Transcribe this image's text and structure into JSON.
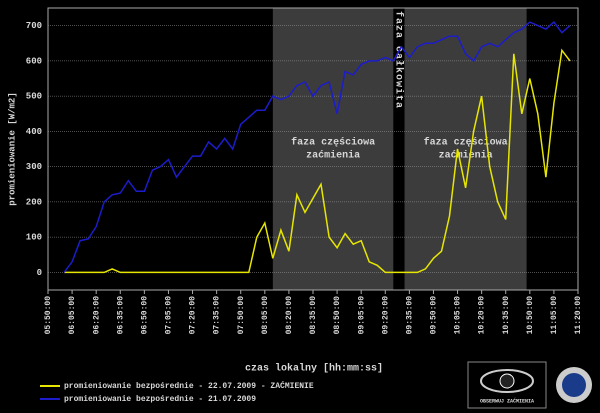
{
  "chart_data": {
    "type": "line",
    "y_label": "promieniowanie [W/m2]",
    "x_label": "czas lokalny [hh:mm:ss]",
    "x": [
      "06:00:00",
      "06:05:00",
      "06:10:00",
      "06:15:00",
      "06:20:00",
      "06:25:00",
      "06:30:00",
      "06:35:00",
      "06:40:00",
      "06:45:00",
      "06:50:00",
      "06:55:00",
      "07:00:00",
      "07:05:00",
      "07:10:00",
      "07:15:00",
      "07:20:00",
      "07:25:00",
      "07:30:00",
      "07:35:00",
      "07:40:00",
      "07:45:00",
      "07:50:00",
      "07:55:00",
      "08:00:00",
      "08:05:00",
      "08:10:00",
      "08:15:00",
      "08:20:00",
      "08:25:00",
      "08:30:00",
      "08:35:00",
      "08:40:00",
      "08:45:00",
      "08:50:00",
      "08:55:00",
      "09:00:00",
      "09:05:00",
      "09:10:00",
      "09:15:00",
      "09:20:00",
      "09:25:00",
      "09:30:00",
      "09:35:00",
      "09:40:00",
      "09:45:00",
      "09:50:00",
      "09:55:00",
      "10:00:00",
      "10:05:00",
      "10:10:00",
      "10:15:00",
      "10:20:00",
      "10:25:00",
      "10:30:00",
      "10:35:00",
      "10:40:00",
      "10:45:00",
      "10:50:00",
      "10:55:00",
      "11:00:00",
      "11:05:00",
      "11:10:00",
      "11:15:00"
    ],
    "series": [
      {
        "name": "promieniowanie bezpośrednie - 22.07.2009 - ZAĆMIENIE",
        "color": "#e6e600",
        "values": [
          0,
          0,
          0,
          0,
          0,
          0,
          10,
          0,
          0,
          0,
          0,
          0,
          0,
          0,
          0,
          0,
          0,
          0,
          0,
          0,
          0,
          0,
          0,
          0,
          100,
          140,
          40,
          120,
          60,
          220,
          170,
          210,
          250,
          100,
          70,
          110,
          80,
          90,
          30,
          20,
          0,
          0,
          0,
          0,
          0,
          10,
          40,
          60,
          160,
          350,
          240,
          400,
          500,
          300,
          200,
          150,
          620,
          450,
          550,
          450,
          270,
          480,
          630,
          600
        ]
      },
      {
        "name": "promieniowanie bezpośrednie - 21.07.2009",
        "color": "#1c1ccc",
        "values": [
          0,
          30,
          90,
          95,
          130,
          200,
          220,
          225,
          260,
          230,
          230,
          290,
          300,
          320,
          270,
          300,
          330,
          330,
          370,
          350,
          380,
          350,
          420,
          440,
          460,
          460,
          500,
          490,
          500,
          530,
          540,
          500,
          530,
          540,
          450,
          570,
          560,
          590,
          600,
          600,
          610,
          600,
          640,
          610,
          640,
          650,
          650,
          660,
          670,
          670,
          620,
          600,
          640,
          650,
          640,
          660,
          680,
          690,
          710,
          700,
          690,
          710,
          680,
          700
        ]
      }
    ],
    "ylim": [
      -50,
      750
    ],
    "yticks": [
      0,
      100,
      200,
      300,
      400,
      500,
      600,
      700
    ],
    "xlim": [
      "05:50:00",
      "11:20:00"
    ],
    "xticks": [
      "05:50:00",
      "06:05:00",
      "06:20:00",
      "06:35:00",
      "06:50:00",
      "07:05:00",
      "07:20:00",
      "07:35:00",
      "07:50:00",
      "08:05:00",
      "08:20:00",
      "08:35:00",
      "08:50:00",
      "09:05:00",
      "09:20:00",
      "09:35:00",
      "09:50:00",
      "10:05:00",
      "10:20:00",
      "10:35:00",
      "10:50:00",
      "11:05:00",
      "11:20:00"
    ],
    "grid": true,
    "phases": [
      {
        "start": "08:10:00",
        "end": "09:25:00",
        "label": [
          "faza częściowa",
          "zaćmienia"
        ],
        "shaded": true
      },
      {
        "start": "09:25:00",
        "end": "09:32:00",
        "label": [
          "faza całkowita"
        ],
        "shaded": false
      },
      {
        "start": "09:32:00",
        "end": "10:48:00",
        "label": [
          "faza częściowa",
          "zaćmienia"
        ],
        "shaded": true
      }
    ],
    "logo_text": "OBSERWUJ ZAĆMIENIA"
  }
}
